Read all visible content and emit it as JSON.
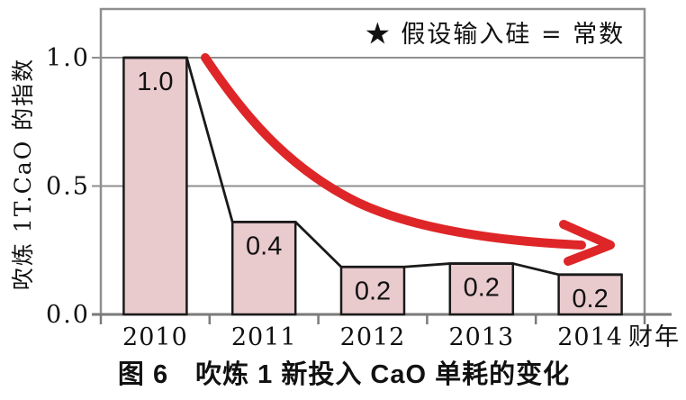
{
  "chart_data": {
    "type": "bar",
    "title": "图 6　吹炼 1 新投入 CaO 单耗的变化",
    "annotation": "★ 假设输入硅 = 常数",
    "xlabel": "财年",
    "ylabel": "吹炼 1T.CaO 的指数",
    "categories": [
      "2010",
      "2011",
      "2012",
      "2013",
      "2014"
    ],
    "values": [
      1.0,
      0.4,
      0.2,
      0.2,
      0.2
    ],
    "bar_labels": [
      "1.0",
      "0.4",
      "0.2",
      "0.2",
      "0.2"
    ],
    "plotted_heights": [
      1.0,
      0.36,
      0.185,
      0.198,
      0.155
    ],
    "y_ticks": [
      {
        "label": "1.0",
        "value": 1.0
      },
      {
        "label": "0.5",
        "value": 0.5
      },
      {
        "label": "0.0",
        "value": 0.0
      }
    ],
    "ylim": [
      0,
      1.19
    ],
    "grid": "horizontal gridlines at 0.5 and 1.0",
    "legend": "none",
    "overlays": "black line connecting bar tops; thick red exponential-decay arrow pointing right",
    "colors": {
      "bar_fill": "#e9cacd",
      "bar_border": "#1a1a1a",
      "line": "#1a1a1a",
      "arrow": "#de2628",
      "grid": "#8f8f8f",
      "axis": "#7a7a7a",
      "text": "#111111"
    }
  }
}
